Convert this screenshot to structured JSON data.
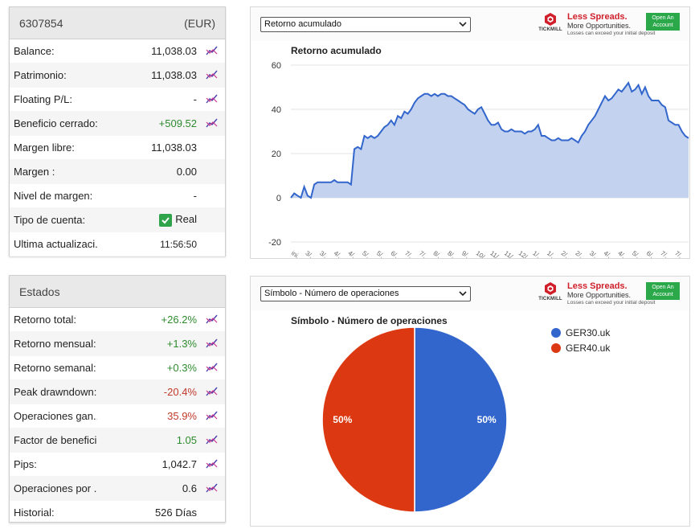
{
  "account": {
    "number": "6307854",
    "currency": "(EUR)",
    "rows": [
      {
        "label": "Balance:",
        "value": "11,038.03",
        "chart": true
      },
      {
        "label": "Patrimonio:",
        "value": "11,038.03",
        "chart": true
      },
      {
        "label": "Floating P/L:",
        "value": "-",
        "chart": true
      },
      {
        "label": "Beneficio cerrado:",
        "value": "+509.52",
        "chart": true,
        "tone": "pos"
      },
      {
        "label": "Margen libre:",
        "value": "11,038.03",
        "chart": false
      },
      {
        "label": "Margen :",
        "value": "0.00",
        "chart": false
      },
      {
        "label": "Nivel de margen:",
        "value": "-",
        "chart": false
      },
      {
        "label": "Tipo de cuenta:",
        "value": "Real",
        "chart": false,
        "check": true
      },
      {
        "label": "Ultima actualizaci...",
        "value": "11:56:50",
        "chart": false,
        "small": true
      }
    ]
  },
  "stats": {
    "title": "Estados",
    "rows": [
      {
        "label": "Retorno total:",
        "value": "+26.2%",
        "chart": true,
        "tone": "pos"
      },
      {
        "label": "Retorno mensual:",
        "value": "+1.3%",
        "chart": true,
        "tone": "pos"
      },
      {
        "label": "Retorno semanal:",
        "value": "+0.3%",
        "chart": true,
        "tone": "pos"
      },
      {
        "label": "Peak drawndown:",
        "value": "-20.4%",
        "chart": true,
        "tone": "neg"
      },
      {
        "label": "Operaciones gan...",
        "value": "35.9%",
        "chart": true,
        "tone": "neg"
      },
      {
        "label": "Factor de beneficio:",
        "value": "1.05",
        "chart": true,
        "tone": "pos"
      },
      {
        "label": "Pips:",
        "value": "1,042.7",
        "chart": true
      },
      {
        "label": "Operaciones por ...",
        "value": "0.6",
        "chart": true
      },
      {
        "label": "Historial:",
        "value": "526 Días",
        "chart": false
      }
    ]
  },
  "ad": {
    "brand": "TICKMILL",
    "title": "Less Spreads.",
    "subtitle": "More Opportunities.",
    "disclaimer": "Losses can exceed your initial deposit",
    "button_line1": "Open An",
    "button_line2": "Account"
  },
  "charts": {
    "line_select": "Retorno acumulado",
    "pie_select": "Símbolo - Número de operaciones"
  },
  "colors": {
    "line": "#3366cc",
    "area": "#c3d3ef",
    "pie_a": "#3366cc",
    "pie_b": "#dc3912",
    "positive": "#2e8b2e",
    "negative": "#c0392b"
  },
  "chart_data": [
    {
      "type": "area",
      "title": "Retorno acumulado",
      "ylim": [
        -20,
        60
      ],
      "yticks": [
        60,
        40,
        20,
        0,
        -20
      ],
      "xticks": [
        "ini...",
        "3/...",
        "3/...",
        "4/...",
        "4/...",
        "5/...",
        "5/...",
        "6/...",
        "7/...",
        "7/...",
        "8/...",
        "8/...",
        "9/...",
        "10/...",
        "11/...",
        "11/...",
        "12/...",
        "1/...",
        "1/...",
        "2/...",
        "2/...",
        "3/...",
        "4/...",
        "4/...",
        "5/...",
        "6/...",
        "7/...",
        "7/..."
      ],
      "grid": true,
      "values": [
        0,
        2,
        1,
        0,
        5,
        1,
        0,
        6,
        7,
        7,
        7,
        7,
        7,
        8,
        7,
        7,
        7,
        7,
        6,
        22,
        23,
        22,
        28,
        27,
        28,
        27,
        28,
        30,
        32,
        33,
        35,
        33,
        37,
        36,
        39,
        38,
        40,
        43,
        45,
        46,
        47,
        47,
        46,
        47,
        46,
        47,
        47,
        46,
        46,
        45,
        44,
        43,
        42,
        40,
        39,
        38,
        40,
        41,
        38,
        35,
        33,
        33,
        34,
        31,
        30,
        30,
        31,
        30,
        30,
        30,
        29,
        30,
        30,
        31,
        33,
        28,
        28,
        27,
        26,
        26,
        27,
        26,
        26,
        26,
        27,
        26,
        25,
        28,
        30,
        33,
        35,
        37,
        40,
        43,
        46,
        44,
        45,
        47,
        49,
        48,
        50,
        52,
        48,
        49,
        51,
        47,
        50,
        46,
        44,
        44,
        44,
        42,
        41,
        35,
        34,
        33,
        33,
        30,
        28,
        27
      ]
    },
    {
      "type": "pie",
      "title": "Símbolo - Número de operaciones",
      "legend": "right",
      "slices": [
        {
          "name": "GER30.uk",
          "value": 50,
          "label": "50%"
        },
        {
          "name": "GER40.uk",
          "value": 50,
          "label": "50%"
        }
      ]
    }
  ]
}
